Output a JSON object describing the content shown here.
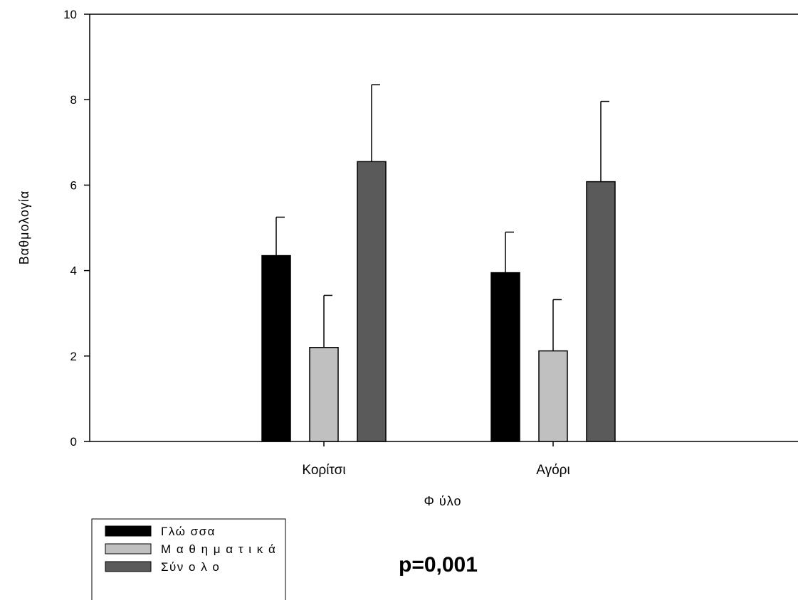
{
  "chart_data": {
    "type": "bar",
    "title": "",
    "xlabel": "Φ ύλο",
    "ylabel": "Βαθμολογία",
    "ylim": [
      0,
      10
    ],
    "yticks": [
      0,
      2,
      4,
      6,
      8,
      10
    ],
    "grid": false,
    "legend_position": "bottom-left",
    "categories": [
      "Κορίτσι",
      "Αγόρι"
    ],
    "series": [
      {
        "name": "Γλώ σσα",
        "values": [
          4.35,
          3.95
        ],
        "errors": [
          0.9,
          0.95
        ],
        "color": "#000000"
      },
      {
        "name": "Μ α θ η μ α τ ι κ ά",
        "values": [
          2.2,
          2.12
        ],
        "errors": [
          1.22,
          1.2
        ],
        "color": "#c0c0c0"
      },
      {
        "name": "Σύν ο λ ο",
        "values": [
          6.55,
          6.08
        ],
        "errors": [
          1.8,
          1.88
        ],
        "color": "#5a5a5a"
      }
    ],
    "annotation": "p=0,001"
  }
}
